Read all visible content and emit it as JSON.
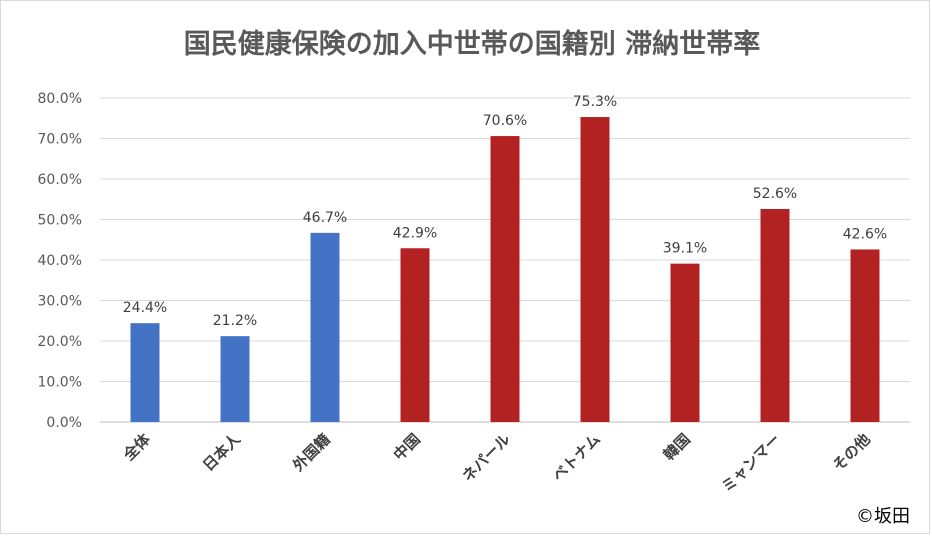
{
  "chart_data": {
    "type": "bar",
    "title": "国民健康保険の加入中世帯の国籍別 滞納世帯率",
    "categories": [
      "全体",
      "日本人",
      "外国籍",
      "中国",
      "ネパール",
      "ベトナム",
      "韓国",
      "ミャンマー",
      "その他"
    ],
    "values": [
      24.4,
      21.2,
      46.7,
      42.9,
      70.6,
      75.3,
      39.1,
      52.6,
      42.6
    ],
    "data_labels": [
      "24.4%",
      "21.2%",
      "46.7%",
      "42.9%",
      "70.6%",
      "75.3%",
      "39.1%",
      "52.6%",
      "42.6%"
    ],
    "bar_colors": [
      "#4472c4",
      "#4472c4",
      "#4472c4",
      "#b22222",
      "#b22222",
      "#b22222",
      "#b22222",
      "#b22222",
      "#b22222"
    ],
    "y_ticks": [
      "0.0%",
      "10.0%",
      "20.0%",
      "30.0%",
      "40.0%",
      "50.0%",
      "60.0%",
      "70.0%",
      "80.0%"
    ],
    "ylim": [
      0,
      80
    ],
    "xlabel": "",
    "ylabel": "",
    "grid": true,
    "legend": "none"
  },
  "copyright": "©坂田"
}
